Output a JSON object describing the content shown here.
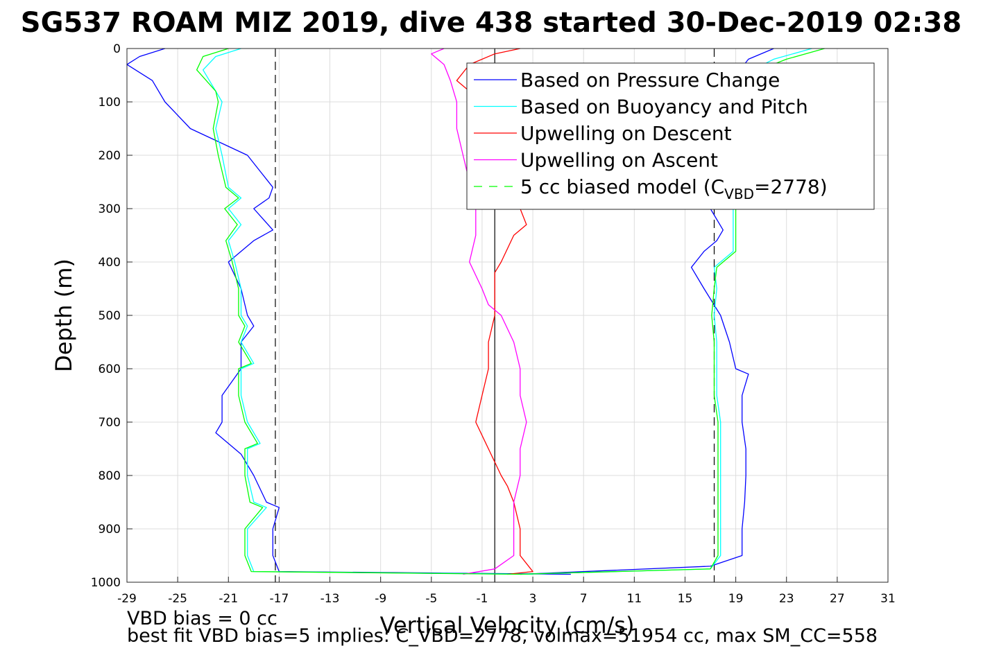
{
  "chart_data": {
    "type": "line",
    "title": "SG537 ROAM MIZ 2019, dive 438 started 30-Dec-2019 02:38",
    "xlabel": "Vertical Velocity (cm/s)",
    "ylabel": "Depth (m)",
    "xlim": [
      -29,
      31
    ],
    "ylim": [
      0,
      1000
    ],
    "y_reversed": true,
    "grid": true,
    "x_ticks": [
      -29,
      -25,
      -21,
      -17,
      -13,
      -9,
      -5,
      -1,
      3,
      7,
      11,
      15,
      19,
      23,
      27,
      31
    ],
    "y_ticks": [
      0,
      100,
      200,
      300,
      400,
      500,
      600,
      700,
      800,
      900,
      1000
    ],
    "legend_location": "top-right",
    "legend": [
      {
        "label": "Based on Pressure Change",
        "color": "#0000ff",
        "style": "solid"
      },
      {
        "label": "Based on Buoyancy and Pitch",
        "color": "#00ffff",
        "style": "solid"
      },
      {
        "label": "Upwelling on Descent",
        "color": "#ff0000",
        "style": "solid"
      },
      {
        "label": "Upwelling on Ascent",
        "color": "#ff00ff",
        "style": "solid"
      },
      {
        "label": "5 cc biased model (C",
        "sub": "VBD",
        "tail": "=2778)",
        "color": "#00ff00",
        "style": "dashed"
      }
    ],
    "series": [
      {
        "name": "Based on Pressure Change",
        "color": "#0000ff",
        "segments": [
          {
            "depth": [
              0,
              15,
              30,
              60,
              100,
              150,
              200,
              230,
              260,
              280,
              300,
              340,
              360,
              380,
              400,
              450,
              500,
              520,
              550,
              600,
              650,
              700,
              720,
              760,
              800,
              850,
              860,
              900,
              950,
              980,
              985
            ],
            "velocity": [
              -26,
              -28,
              -29,
              -27,
              -26,
              -24,
              -19.5,
              -18.5,
              -17.5,
              -17.8,
              -19,
              -17.5,
              -19,
              -20,
              -21,
              -20,
              -19.5,
              -19,
              -20,
              -20,
              -21.5,
              -21.5,
              -22,
              -20,
              -19,
              -18,
              -17,
              -17.5,
              -17.5,
              -17,
              6
            ]
          },
          {
            "depth": [
              0,
              20,
              50,
              100,
              200,
              300,
              340,
              360,
              380,
              410,
              450,
              500,
              550,
              600,
              610,
              650,
              700,
              750,
              800,
              850,
              900,
              950,
              970,
              985
            ],
            "velocity": [
              22,
              20,
              19,
              18.5,
              18.5,
              17,
              18,
              17.5,
              16.5,
              15.5,
              16.5,
              17.8,
              18.5,
              19,
              20,
              19.5,
              19.5,
              19.8,
              19.8,
              19.7,
              19.5,
              19.5,
              17,
              2
            ]
          }
        ]
      },
      {
        "name": "Based on Buoyancy and Pitch",
        "color": "#00ffff",
        "segments": [
          {
            "depth": [
              0,
              15,
              40,
              80,
              100,
              150,
              200,
              260,
              280,
              300,
              330,
              360,
              400,
              450,
              500,
              520,
              550,
              590,
              600,
              650,
              700,
              740,
              750,
              800,
              850,
              860,
              900,
              950,
              980,
              985
            ],
            "velocity": [
              -20,
              -22,
              -23,
              -22,
              -21.5,
              -22,
              -21.5,
              -21,
              -20,
              -21,
              -20,
              -21,
              -20.5,
              -20,
              -20,
              -19.5,
              -20,
              -19,
              -20,
              -20,
              -19.5,
              -18.5,
              -19.5,
              -19.5,
              -19,
              -18,
              -19.5,
              -19.5,
              -19,
              3
            ]
          },
          {
            "depth": [
              0,
              20,
              50,
              100,
              200,
              300,
              360,
              380,
              410,
              450,
              500,
              550,
              600,
              650,
              700,
              750,
              800,
              850,
              900,
              950,
              975,
              985
            ],
            "velocity": [
              25,
              22,
              19.5,
              19,
              19,
              18.8,
              18.8,
              18.8,
              17.3,
              17.5,
              17.3,
              17.5,
              17.5,
              17.5,
              17.8,
              17.8,
              17.8,
              17.8,
              17.8,
              17.8,
              17,
              2
            ]
          }
        ]
      },
      {
        "name": "Upwelling on Descent",
        "color": "#ff0000",
        "segments": [
          {
            "depth": [
              0,
              10,
              30,
              60,
              100,
              150,
              200,
              250,
              300,
              330,
              350,
              400,
              420,
              450,
              500,
              550,
              600,
              650,
              700,
              750,
              800,
              820,
              850,
              900,
              950,
              980,
              985
            ],
            "velocity": [
              2,
              0,
              -2,
              -3,
              -1,
              1,
              2.5,
              2,
              2,
              2.5,
              1.5,
              0.5,
              0,
              0,
              0,
              -0.5,
              -0.5,
              -1,
              -1.5,
              -0.5,
              0.5,
              1,
              1.5,
              2,
              2,
              3,
              1
            ]
          }
        ]
      },
      {
        "name": "Upwelling on Ascent",
        "color": "#ff00ff",
        "segments": [
          {
            "depth": [
              0,
              10,
              30,
              60,
              100,
              150,
              200,
              250,
              300,
              350,
              400,
              450,
              480,
              500,
              550,
              600,
              650,
              700,
              750,
              800,
              850,
              900,
              950,
              975,
              985
            ],
            "velocity": [
              -4,
              -5,
              -4,
              -3.5,
              -3,
              -3,
              -2.5,
              -2,
              -1.5,
              -1.5,
              -2,
              -1,
              -0.5,
              0.5,
              1.5,
              2,
              2,
              2.5,
              2,
              2,
              1.5,
              1.5,
              1.5,
              0,
              -2.5
            ]
          }
        ]
      },
      {
        "name": "5 cc biased model (C_VBD=2778)",
        "color": "#00ff00",
        "segments": [
          {
            "depth": [
              0,
              15,
              40,
              80,
              100,
              150,
              200,
              260,
              280,
              300,
              330,
              360,
              400,
              450,
              500,
              520,
              550,
              590,
              600,
              650,
              700,
              740,
              750,
              800,
              850,
              860,
              900,
              950,
              980,
              985
            ],
            "velocity": [
              -21,
              -23,
              -23.5,
              -22,
              -21.8,
              -22.2,
              -21.8,
              -21.2,
              -20.2,
              -21.3,
              -20.3,
              -21.2,
              -20.7,
              -20.2,
              -20.2,
              -19.7,
              -20.2,
              -19.2,
              -20.2,
              -20.2,
              -19.7,
              -18.7,
              -19.7,
              -19.7,
              -19.3,
              -18.3,
              -19.7,
              -19.7,
              -19.2,
              2
            ]
          },
          {
            "depth": [
              0,
              20,
              50,
              100,
              200,
              300,
              360,
              380,
              410,
              450,
              500,
              550,
              600,
              650,
              700,
              750,
              800,
              850,
              900,
              950,
              975,
              985
            ],
            "velocity": [
              26,
              23,
              19.8,
              19.2,
              19.2,
              19,
              19,
              19,
              17.5,
              17.3,
              17.1,
              17.3,
              17.3,
              17.3,
              17.6,
              17.6,
              17.6,
              17.6,
              17.6,
              17.6,
              17,
              2
            ]
          }
        ]
      }
    ],
    "reference_lines": [
      {
        "x": -17.3,
        "color": "#000000",
        "style": "dashed"
      },
      {
        "x": 0,
        "color": "#000000",
        "style": "solid"
      },
      {
        "x": 17.3,
        "color": "#000000",
        "style": "dashed"
      }
    ]
  },
  "notes": {
    "line1": "VBD bias = 0 cc",
    "line2": "best fit VBD bias=5 implies: C_VBD=2778, volmax=51954 cc, max SM_CC=558"
  }
}
